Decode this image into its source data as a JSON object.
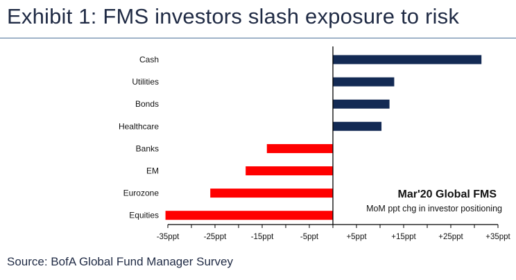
{
  "header": {
    "title": "Exhibit 1: FMS investors slash exposure to risk"
  },
  "footer": {
    "source": "Source: BofA Global Fund Manager Survey"
  },
  "colors": {
    "positive": "#132a54",
    "negative": "#ff0000",
    "title": "#1f2a44",
    "rule": "#9fb3c8"
  },
  "chart_data": {
    "type": "bar",
    "orientation": "horizontal",
    "categories": [
      "Cash",
      "Utilities",
      "Bonds",
      "Healthcare",
      "Banks",
      "EM",
      "Eurozone",
      "Equities"
    ],
    "values": [
      31.5,
      13,
      12,
      10.3,
      -14,
      -18.5,
      -26,
      -35.5
    ],
    "xlim": [
      -35,
      35
    ],
    "xticks": [
      -35,
      -25,
      -15,
      -5,
      5,
      15,
      25,
      35
    ],
    "xtick_labels": [
      "-35ppt",
      "-25ppt",
      "-15ppt",
      "-5ppt",
      "+5ppt",
      "+15ppt",
      "+25ppt",
      "+35ppt"
    ],
    "grid": false,
    "annotation": {
      "title": "Mar'20 Global FMS",
      "subtitle": "MoM ppt chg in investor positioning"
    }
  }
}
